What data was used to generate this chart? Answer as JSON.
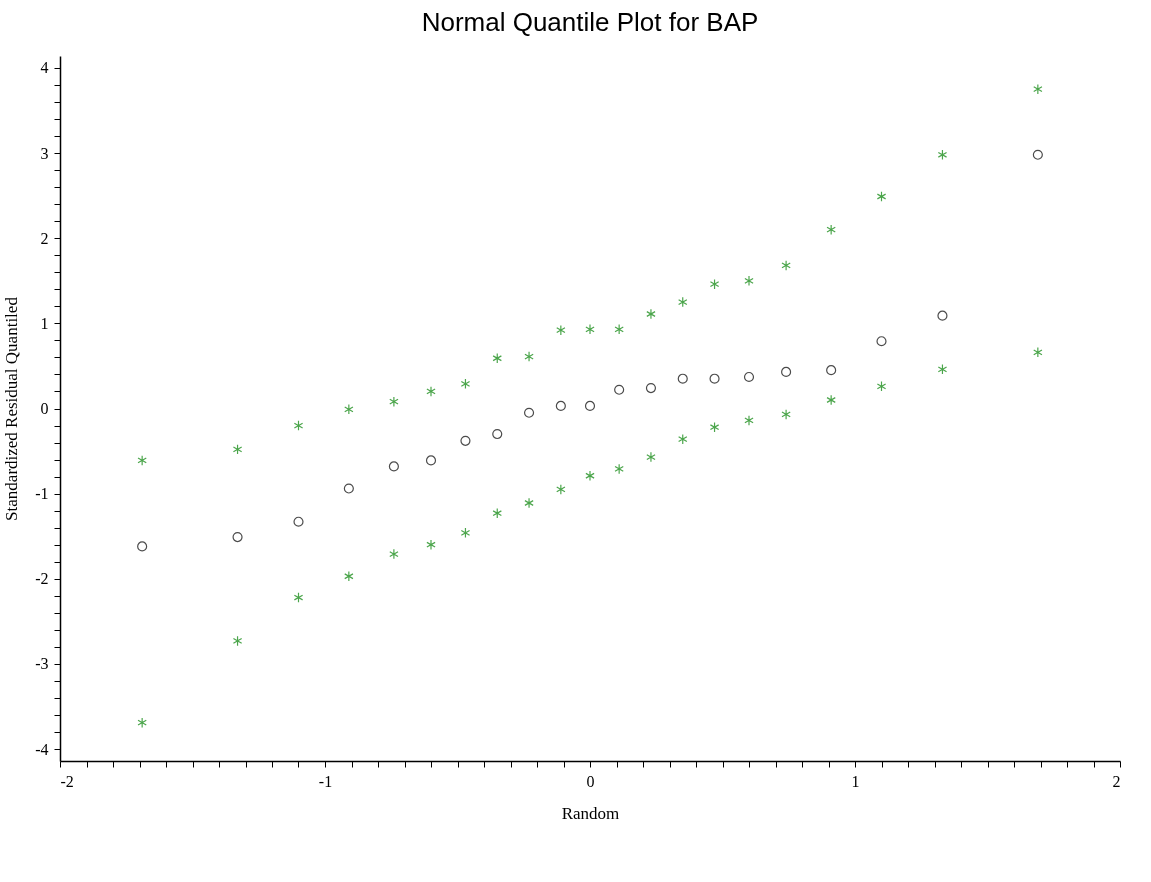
{
  "chart_data": {
    "type": "scatter",
    "title": "Normal Quantile Plot for BAP",
    "xlabel": "Random",
    "ylabel": "Standardized Residual Quantiled",
    "x": [
      -1.69,
      -1.33,
      -1.1,
      -0.91,
      -0.74,
      -0.6,
      -0.47,
      -0.35,
      -0.23,
      -0.11,
      0,
      0.11,
      0.23,
      0.35,
      0.47,
      0.6,
      0.74,
      0.91,
      1.1,
      1.33,
      1.69
    ],
    "series": [
      {
        "color": "#008000",
        "marker": "cross",
        "values": [
          -0.61,
          -0.48,
          -0.2,
          -0.01,
          0.08,
          0.2,
          0.29,
          0.59,
          0.61,
          0.92,
          0.93,
          0.93,
          1.11,
          1.25,
          1.46,
          1.5,
          1.68,
          2.1,
          2.49,
          2.98,
          3.75
        ]
      },
      {
        "color": "#000000",
        "marker": "circle",
        "values": [
          -1.62,
          -1.51,
          -1.33,
          -0.94,
          -0.68,
          -0.61,
          -0.38,
          -0.3,
          -0.05,
          0.03,
          0.03,
          0.22,
          0.24,
          0.35,
          0.35,
          0.37,
          0.43,
          0.45,
          0.79,
          1.09,
          2.98
        ]
      },
      {
        "color": "#008000",
        "marker": "cross",
        "values": [
          -3.69,
          -2.73,
          -2.22,
          -1.97,
          -1.71,
          -1.6,
          -1.46,
          -1.23,
          -1.11,
          -0.95,
          -0.79,
          -0.71,
          -0.57,
          -0.36,
          -0.22,
          -0.14,
          -0.07,
          0.1,
          0.26,
          0.46,
          0.66
        ]
      }
    ],
    "xlim": [
      -2,
      2
    ],
    "ylim": [
      -4.14,
      4.14
    ],
    "xticks": [
      -2,
      {
        "value": -1.9,
        "label": null
      },
      {
        "value": -1.8,
        "label": null
      },
      {
        "value": -1.7,
        "label": null
      },
      {
        "value": -1.6,
        "label": null
      },
      {
        "value": -1.5,
        "label": null
      },
      {
        "value": -1.4,
        "label": null
      },
      {
        "value": -1.3,
        "label": null
      },
      {
        "value": -1.2,
        "label": null
      },
      {
        "value": -1.1,
        "label": null
      },
      -1,
      {
        "value": -0.9,
        "label": null
      },
      {
        "value": -0.8,
        "label": null
      },
      {
        "value": -0.7,
        "label": null
      },
      {
        "value": -0.6,
        "label": null
      },
      {
        "value": -0.5,
        "label": null
      },
      {
        "value": -0.4,
        "label": null
      },
      {
        "value": -0.3,
        "label": null
      },
      {
        "value": -0.2,
        "label": null
      },
      {
        "value": -0.1,
        "label": null
      },
      0,
      {
        "value": 0.1,
        "label": null
      },
      {
        "value": 0.2,
        "label": null
      },
      {
        "value": 0.3,
        "label": null
      },
      {
        "value": 0.4,
        "label": null
      },
      {
        "value": 0.5,
        "label": null
      },
      {
        "value": 0.6,
        "label": null
      },
      {
        "value": 0.7,
        "label": null
      },
      {
        "value": 0.8,
        "label": null
      },
      {
        "value": 0.9,
        "label": null
      },
      1,
      {
        "value": 1.1,
        "label": null
      },
      {
        "value": 1.2,
        "label": null
      },
      {
        "value": 1.3,
        "label": null
      },
      {
        "value": 1.4,
        "label": null
      },
      {
        "value": 1.5,
        "label": null
      },
      {
        "value": 1.6,
        "label": null
      },
      {
        "value": 1.7,
        "label": null
      },
      {
        "value": 1.8,
        "label": null
      },
      {
        "value": 1.9,
        "label": null
      },
      2
    ],
    "yticks": [
      -4,
      {
        "value": -3.8,
        "label": null
      },
      {
        "value": -3.6,
        "label": null
      },
      {
        "value": -3.4,
        "label": null
      },
      {
        "value": -3.2,
        "label": null
      },
      -3,
      {
        "value": -2.8,
        "label": null
      },
      {
        "value": -2.6,
        "label": null
      },
      {
        "value": -2.4,
        "label": null
      },
      {
        "value": -2.2,
        "label": null
      },
      -2,
      {
        "value": -1.8,
        "label": null
      },
      {
        "value": -1.6,
        "label": null
      },
      {
        "value": -1.4,
        "label": null
      },
      {
        "value": -1.2,
        "label": null
      },
      -1,
      {
        "value": -0.8,
        "label": null
      },
      {
        "value": -0.6,
        "label": null
      },
      {
        "value": -0.4,
        "label": null
      },
      {
        "value": -0.2,
        "label": null
      },
      0,
      {
        "value": 0.2,
        "label": null
      },
      {
        "value": 0.4,
        "label": null
      },
      {
        "value": 0.6,
        "label": null
      },
      {
        "value": 0.8,
        "label": null
      },
      1,
      {
        "value": 1.2,
        "label": null
      },
      {
        "value": 1.4,
        "label": null
      },
      {
        "value": 1.6,
        "label": null
      },
      {
        "value": 1.8,
        "label": null
      },
      2,
      {
        "value": 2.2,
        "label": null
      },
      {
        "value": 2.4,
        "label": null
      },
      {
        "value": 2.6,
        "label": null
      },
      {
        "value": 2.8,
        "label": null
      },
      3,
      {
        "value": 3.2,
        "label": null
      },
      {
        "value": 3.4,
        "label": null
      },
      {
        "value": 3.6,
        "label": null
      },
      {
        "value": 3.8,
        "label": null
      },
      4
    ],
    "grid": false
  }
}
